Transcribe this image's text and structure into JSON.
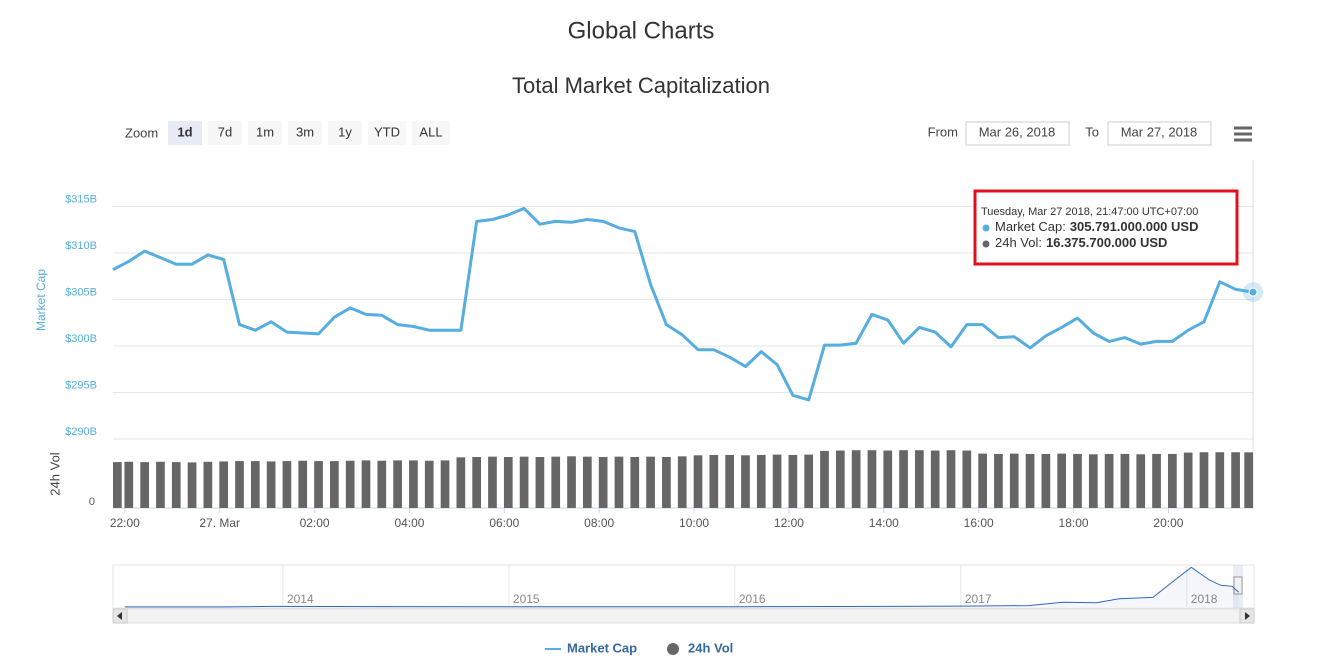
{
  "header": {
    "title": "Global Charts"
  },
  "chart_data": {
    "type": "line",
    "title": "Total Market Capitalization",
    "range_selector": {
      "label": "Zoom",
      "buttons": [
        "1d",
        "7d",
        "1m",
        "3m",
        "1y",
        "YTD",
        "ALL"
      ],
      "selected": 0
    },
    "date_range": {
      "from_label": "From",
      "from": "Mar 26, 2018",
      "to_label": "To",
      "to": "Mar 27, 2018"
    },
    "y_label": "Market Cap",
    "y2_label": "24h Vol",
    "grid": true,
    "x": [
      -135,
      -115,
      -95,
      -75,
      -55,
      -35,
      -15,
      5,
      25,
      45,
      65,
      85,
      105,
      125,
      145,
      165,
      185,
      205,
      225,
      245,
      265,
      285,
      305,
      325,
      345,
      365,
      385,
      405,
      425,
      445,
      465,
      485,
      505,
      525,
      545,
      565,
      585,
      605,
      625,
      645,
      665,
      685,
      705,
      725,
      745,
      765,
      785,
      805,
      825,
      845,
      865,
      885,
      905,
      925,
      945,
      965,
      985,
      1005,
      1025,
      1045,
      1065,
      1085,
      1105,
      1125,
      1145,
      1165,
      1185,
      1205,
      1225,
      1245,
      1265,
      1285,
      1307
    ],
    "xlim": [
      -135,
      1307
    ],
    "xticks": [
      {
        "value": -120,
        "label": "22:00"
      },
      {
        "value": 0,
        "label": "27. Mar"
      },
      {
        "value": 120,
        "label": "02:00"
      },
      {
        "value": 240,
        "label": "04:00"
      },
      {
        "value": 360,
        "label": "06:00"
      },
      {
        "value": 480,
        "label": "08:00"
      },
      {
        "value": 600,
        "label": "10:00"
      },
      {
        "value": 720,
        "label": "12:00"
      },
      {
        "value": 840,
        "label": "14:00"
      },
      {
        "value": 960,
        "label": "16:00"
      },
      {
        "value": 1080,
        "label": "18:00"
      },
      {
        "value": 1200,
        "label": "20:00"
      }
    ],
    "ylim": [
      290,
      320
    ],
    "yticks": [
      {
        "value": 290,
        "label": "$290B"
      },
      {
        "value": 295,
        "label": "$295B"
      },
      {
        "value": 300,
        "label": "$300B"
      },
      {
        "value": 305,
        "label": "$305B"
      },
      {
        "value": 310,
        "label": "$310B"
      },
      {
        "value": 315,
        "label": "$315B"
      }
    ],
    "y2lim": [
      0,
      20
    ],
    "y2ticks": [
      0
    ],
    "series": [
      {
        "name": "Market Cap",
        "color": "#55ade0",
        "values": [
          308.2,
          309.1,
          310.2,
          309.5,
          308.8,
          308.8,
          309.8,
          309.3,
          302.3,
          301.7,
          302.6,
          301.5,
          301.4,
          301.3,
          303.1,
          304.1,
          303.4,
          303.3,
          302.3,
          302.1,
          301.7,
          301.7,
          301.7,
          313.4,
          313.6,
          314.1,
          314.8,
          313.1,
          313.4,
          313.3,
          313.6,
          313.4,
          312.7,
          312.3,
          306.6,
          302.3,
          301.2,
          299.6,
          299.6,
          298.8,
          297.8,
          299.4,
          298.0,
          294.7,
          294.2,
          300.1,
          300.1,
          300.3,
          303.4,
          302.8,
          300.3,
          302.0,
          301.5,
          299.9,
          302.3,
          302.3,
          300.9,
          301.0,
          299.8,
          301.1,
          302.0,
          303.0,
          301.4,
          300.5,
          300.9,
          300.2,
          300.5,
          300.5,
          301.7,
          302.6,
          306.9,
          306.1,
          305.791
        ]
      },
      {
        "name": "24h Vol",
        "type": "bar",
        "axis": "y2",
        "color": "#666666",
        "values": [
          13.5,
          13.6,
          13.5,
          13.6,
          13.5,
          13.4,
          13.6,
          13.7,
          13.8,
          13.8,
          13.7,
          13.8,
          13.9,
          13.8,
          13.8,
          13.9,
          14.0,
          13.9,
          14.0,
          14.0,
          13.9,
          14.0,
          14.9,
          15.0,
          15.1,
          15.0,
          15.1,
          15.0,
          15.1,
          15.2,
          15.1,
          15.0,
          15.1,
          15.0,
          15.1,
          15.0,
          15.2,
          15.5,
          15.6,
          15.6,
          15.5,
          15.6,
          15.7,
          15.6,
          15.7,
          16.8,
          16.9,
          17.0,
          17.0,
          16.9,
          17.0,
          17.0,
          16.9,
          17.0,
          16.9,
          16.0,
          15.9,
          16.0,
          15.9,
          15.9,
          16.0,
          15.9,
          15.8,
          15.9,
          15.9,
          15.8,
          15.9,
          15.9,
          16.3,
          16.4,
          16.4,
          16.4,
          16.3757
        ]
      }
    ],
    "tooltip": {
      "header": "Tuesday, Mar 27 2018, 21:47:00 UTC+07:00",
      "items": [
        {
          "label": "Market Cap:",
          "value": "305.791.000.000 USD"
        },
        {
          "label": "24h Vol:",
          "value": "16.375.700.000 USD"
        }
      ]
    },
    "navigator": {
      "color": "#3366bb",
      "x": [
        2013.3,
        2013.75,
        2013.95,
        2014.5,
        2015.0,
        2015.5,
        2016.0,
        2016.5,
        2017.0,
        2017.3,
        2017.45,
        2017.6,
        2017.7,
        2017.85,
        2017.95,
        2018.02,
        2018.1,
        2018.15,
        2018.2,
        2018.23
      ],
      "values": [
        1.5,
        2,
        12,
        9,
        5,
        4,
        7,
        11,
        18,
        30,
        100,
        90,
        170,
        200,
        570,
        820,
        560,
        450,
        430,
        306
      ],
      "xlim": [
        2013.27,
        2018.24
      ],
      "ylim": [
        0,
        850
      ],
      "xticks": [
        2014,
        2015,
        2016,
        2017,
        2018
      ]
    }
  }
}
